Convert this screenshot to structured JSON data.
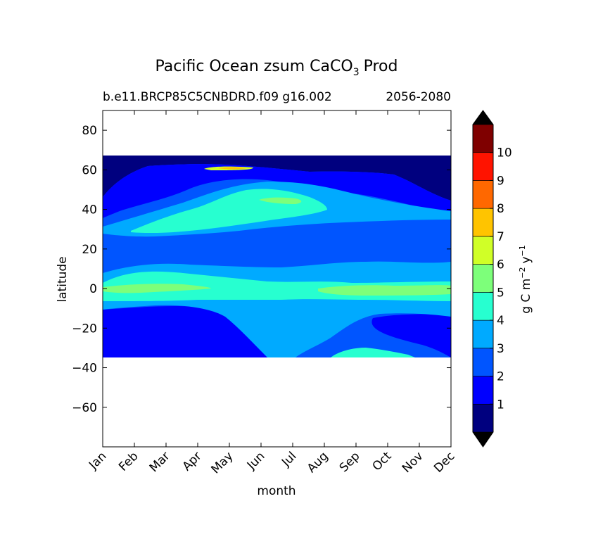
{
  "chart_data": {
    "type": "contourf",
    "title": "Pacific Ocean zsum CaCO",
    "title_subscript": "3",
    "title_suffix": "Prod",
    "subtitle_left": "b.e11.BRCP85C5CNBDRD.f09 g16.002",
    "subtitle_right": "2056-2080",
    "xlabel": "month",
    "ylabel": "latitude",
    "x_ticks": [
      "Jan",
      "Feb",
      "Mar",
      "Apr",
      "May",
      "Jun",
      "Jul",
      "Aug",
      "Sep",
      "Oct",
      "Nov",
      "Dec"
    ],
    "y_ticks": [
      "80",
      "60",
      "40",
      "20",
      "0",
      "−20",
      "−40",
      "−60"
    ],
    "ylim": [
      -80,
      90
    ],
    "data_lat_range": [
      -34,
      67
    ],
    "colorbar": {
      "label": "g C m",
      "label_exp1": "−2",
      "label_mid": "y",
      "label_exp2": "−1",
      "ticks": [
        "1",
        "2",
        "3",
        "4",
        "5",
        "6",
        "7",
        "8",
        "9",
        "10"
      ],
      "levels": [
        0,
        1,
        2,
        3,
        4,
        5,
        6,
        7,
        8,
        9,
        10,
        11
      ],
      "colors": [
        "#00007f",
        "#0000ff",
        "#0055ff",
        "#00aaff",
        "#27ffd0",
        "#7dff7a",
        "#d0ff27",
        "#ffc400",
        "#ff6800",
        "#ff1300",
        "#7f0000"
      ],
      "under_color": "#000000",
      "over_color": "#000000"
    }
  }
}
